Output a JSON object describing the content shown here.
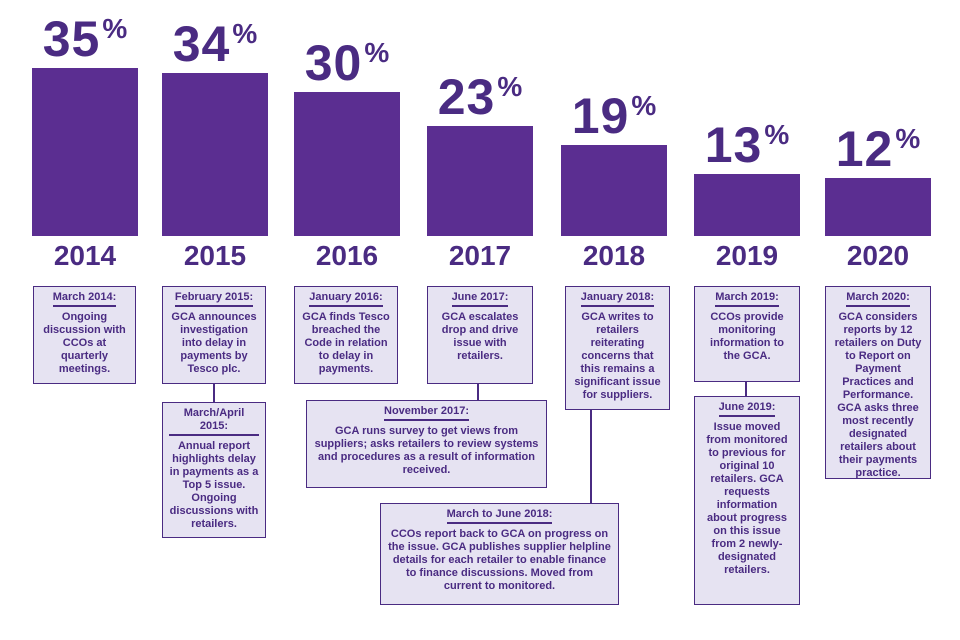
{
  "chart_data": {
    "type": "bar",
    "categories": [
      "2014",
      "2015",
      "2016",
      "2017",
      "2018",
      "2019",
      "2020"
    ],
    "values": [
      35,
      34,
      30,
      23,
      19,
      13,
      12
    ],
    "value_labels": [
      "35",
      "34",
      "30",
      "23",
      "19",
      "13",
      "12"
    ],
    "unit": "%",
    "ylim": [
      0,
      35
    ],
    "bar_color": "#5b2e91",
    "title": "",
    "xlabel": "",
    "ylabel": ""
  },
  "timeline": {
    "box_2014": {
      "date": "March 2014:",
      "text": "Ongoing discussion with CCOs at quarterly meetings."
    },
    "box_2015a": {
      "date": "February 2015:",
      "text": "GCA announces investigation into delay in payments by Tesco plc."
    },
    "box_2015b": {
      "date": "March/April 2015:",
      "text": "Annual report highlights delay in payments as a Top 5 issue. Ongoing discussions with retailers."
    },
    "box_2016": {
      "date": "January 2016:",
      "text": "GCA finds Tesco breached the Code in relation to delay in payments."
    },
    "box_2017a": {
      "date": "June 2017:",
      "text": "GCA escalates drop and drive issue with retailers."
    },
    "box_2017b": {
      "date": "November 2017:",
      "text": "GCA runs survey to get views from suppliers; asks retailers to review systems and procedures as a result of information received."
    },
    "box_2018a": {
      "date": "January 2018:",
      "text": "GCA writes to retailers reiterating concerns that this remains a significant issue for suppliers."
    },
    "box_2018b": {
      "date": "March to June 2018:",
      "text": "CCOs report back to GCA on progress on the issue. GCA publishes supplier helpline details for each retailer to enable finance to finance discussions. Moved from current to monitored."
    },
    "box_2019a": {
      "date": "March 2019:",
      "text": "CCOs provide monitoring information to the GCA."
    },
    "box_2019b": {
      "date": "June 2019:",
      "text": "Issue moved from monitored to previous for original 10 retailers. GCA requests information about progress on this issue from 2 newly-designated retailers."
    },
    "box_2020": {
      "date": "March 2020:",
      "text": "GCA considers reports by 12 retailers on Duty to Report on Payment Practices and Performance. GCA asks three most recently designated retailers about their payments practice."
    }
  }
}
